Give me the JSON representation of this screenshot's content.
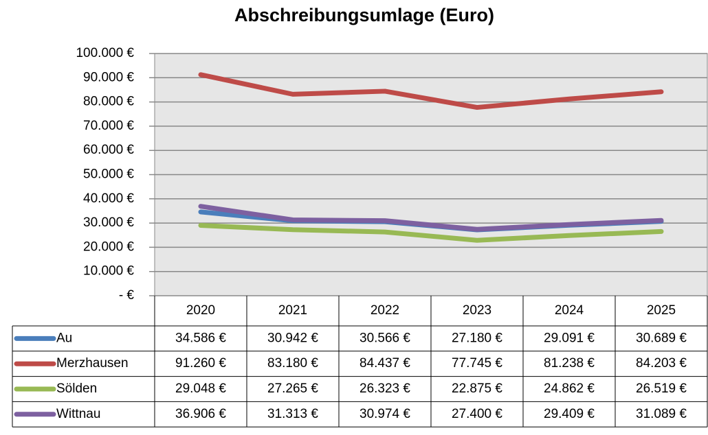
{
  "chart_data": {
    "type": "line",
    "title": "Abschreibungsumlage (Euro)",
    "categories": [
      "2020",
      "2021",
      "2022",
      "2023",
      "2024",
      "2025"
    ],
    "series": [
      {
        "name": "Au",
        "color": "#4a7ebb",
        "values": [
          34586,
          30942,
          30566,
          27180,
          29091,
          30689
        ],
        "value_labels": [
          "34.586 €",
          "30.942 €",
          "30.566 €",
          "27.180 €",
          "29.091 €",
          "30.689 €"
        ]
      },
      {
        "name": "Merzhausen",
        "color": "#be4b48",
        "values": [
          91260,
          83180,
          84437,
          77745,
          81238,
          84203
        ],
        "value_labels": [
          "91.260 €",
          "83.180 €",
          "84.437 €",
          "77.745 €",
          "81.238 €",
          "84.203 €"
        ]
      },
      {
        "name": "Sölden",
        "color": "#98b954",
        "values": [
          29048,
          27265,
          26323,
          22875,
          24862,
          26519
        ],
        "value_labels": [
          "29.048 €",
          "27.265 €",
          "26.323 €",
          "22.875 €",
          "24.862 €",
          "26.519 €"
        ]
      },
      {
        "name": "Wittnau",
        "color": "#7d60a0",
        "values": [
          36906,
          31313,
          30974,
          27400,
          29409,
          31089
        ],
        "value_labels": [
          "36.906 €",
          "31.313 €",
          "30.974 €",
          "27.400 €",
          "29.409 €",
          "31.089 €"
        ]
      }
    ],
    "ylim": [
      0,
      100000
    ],
    "yticks": [
      {
        "value": 0,
        "label": "- €"
      },
      {
        "value": 10000,
        "label": "10.000 €"
      },
      {
        "value": 20000,
        "label": "20.000 €"
      },
      {
        "value": 30000,
        "label": "30.000 €"
      },
      {
        "value": 40000,
        "label": "40.000 €"
      },
      {
        "value": 50000,
        "label": "50.000 €"
      },
      {
        "value": 60000,
        "label": "60.000 €"
      },
      {
        "value": 70000,
        "label": "70.000 €"
      },
      {
        "value": 80000,
        "label": "80.000 €"
      },
      {
        "value": 90000,
        "label": "90.000 €"
      },
      {
        "value": 100000,
        "label": "100.000 €"
      }
    ],
    "grid": true
  }
}
